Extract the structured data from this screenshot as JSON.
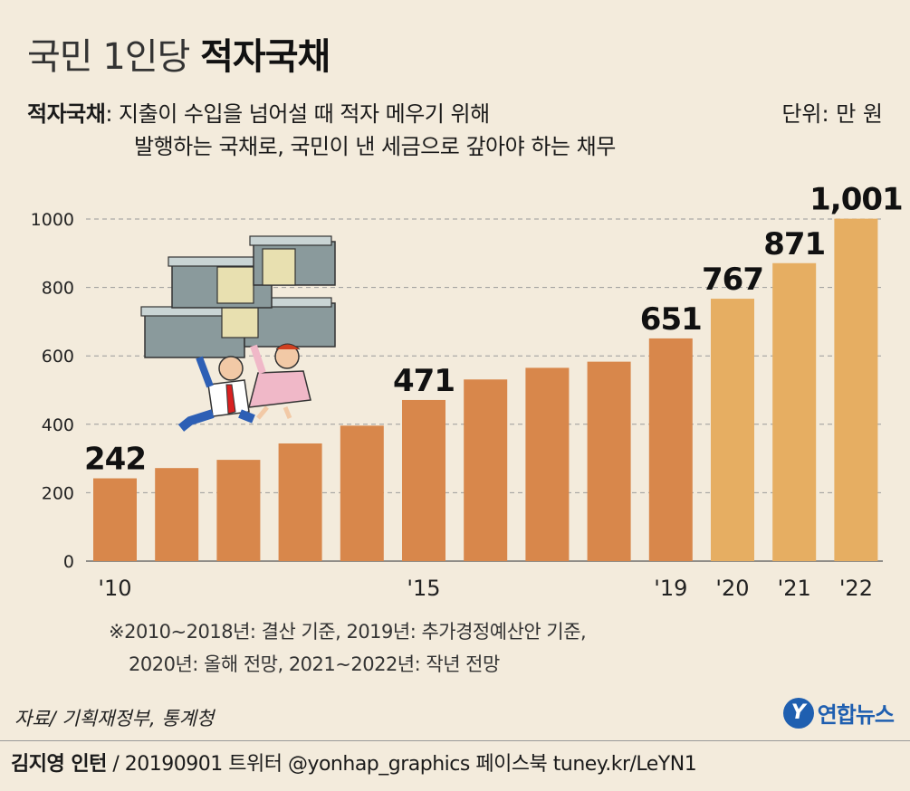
{
  "header": {
    "title_light": "국민 1인당",
    "title_bold": "적자국채",
    "definition_term": "적자국채",
    "definition_line1": ": 지출이 수입을 넘어설 때 적자 메우기 위해",
    "definition_line2": "발행하는 국채로, 국민이 낸 세금으로 갚아야 하는 채무",
    "unit": "단위: 만 원"
  },
  "chart_data": {
    "type": "bar",
    "categories": [
      "2010",
      "2011",
      "2012",
      "2013",
      "2014",
      "2015",
      "2016",
      "2017",
      "2018",
      "2019",
      "2020",
      "2021",
      "2022"
    ],
    "values": [
      242,
      272,
      296,
      344,
      396,
      471,
      531,
      565,
      583,
      651,
      767,
      871,
      1001
    ],
    "x_tick_labels": [
      "'10",
      "",
      "",
      "",
      "",
      "'15",
      "",
      "",
      "",
      "'19",
      "'20",
      "'21",
      "'22"
    ],
    "data_labels": [
      "242",
      "",
      "",
      "",
      "",
      "471",
      "",
      "",
      "",
      "651",
      "767",
      "871",
      "1,001"
    ],
    "y_ticks": [
      0,
      200,
      400,
      600,
      800,
      1000
    ],
    "ylim": [
      0,
      1000
    ],
    "grid": true,
    "colors": {
      "actual": "#d8874b",
      "forecast": "#e6ae62",
      "forecast_from_index": 10
    }
  },
  "note": {
    "line1": "※2010∼2018년: 결산 기준, 2019년: 추가경정예산안 기준,",
    "line2": "2020년: 올해 전망, 2021∼2022년: 작년 전망"
  },
  "source": "자료/ 기획재정부, 통계청",
  "logo": {
    "mark": "Y",
    "text": "연합뉴스",
    "color": "#1f5fb0"
  },
  "footer": {
    "author": "김지영 인턴",
    "rest": " / 20190901 트위터 @yonhap_graphics 페이스북 tuney.kr/LeYN1"
  },
  "illustration": {
    "icon": "people-carrying-money-stacks-illustration"
  }
}
